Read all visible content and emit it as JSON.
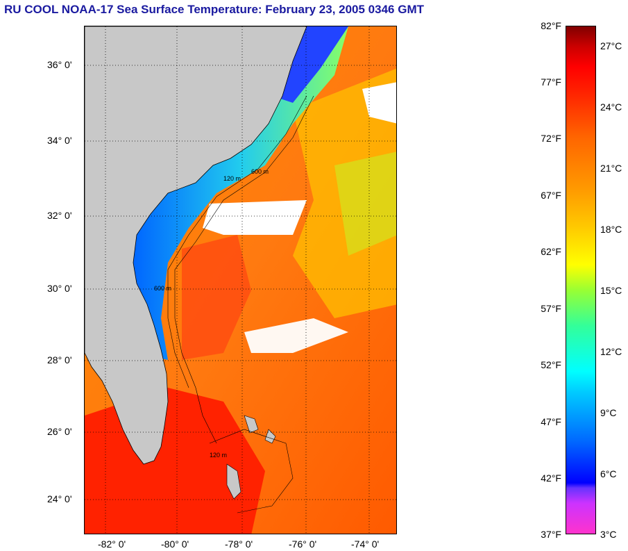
{
  "title": "RU COOL  NOAA-17  Sea Surface Temperature:  February 23, 2005 0346 GMT",
  "map": {
    "lat_labels": [
      "36° 0'",
      "34° 0'",
      "32° 0'",
      "30° 0'",
      "28° 0'",
      "26° 0'",
      "24° 0'"
    ],
    "lon_labels": [
      "-82° 0'",
      "-80° 0'",
      "-78° 0'",
      "-76° 0'",
      "-74° 0'"
    ],
    "contour_labels": [
      "600 m",
      "120 m",
      "600 m",
      "120 m"
    ],
    "colors": {
      "land": "#c8c8c8",
      "cloud": "#ffffff",
      "ocean_warm": "#ff6a00",
      "ocean_cold": "#0033ff"
    }
  },
  "colorbar": {
    "fahrenheit": [
      "82°F",
      "77°F",
      "72°F",
      "67°F",
      "62°F",
      "57°F",
      "52°F",
      "47°F",
      "42°F",
      "37°F"
    ],
    "celsius": [
      "27°C",
      "24°C",
      "21°C",
      "18°C",
      "15°C",
      "12°C",
      "9°C",
      "6°C",
      "3°C"
    ]
  }
}
